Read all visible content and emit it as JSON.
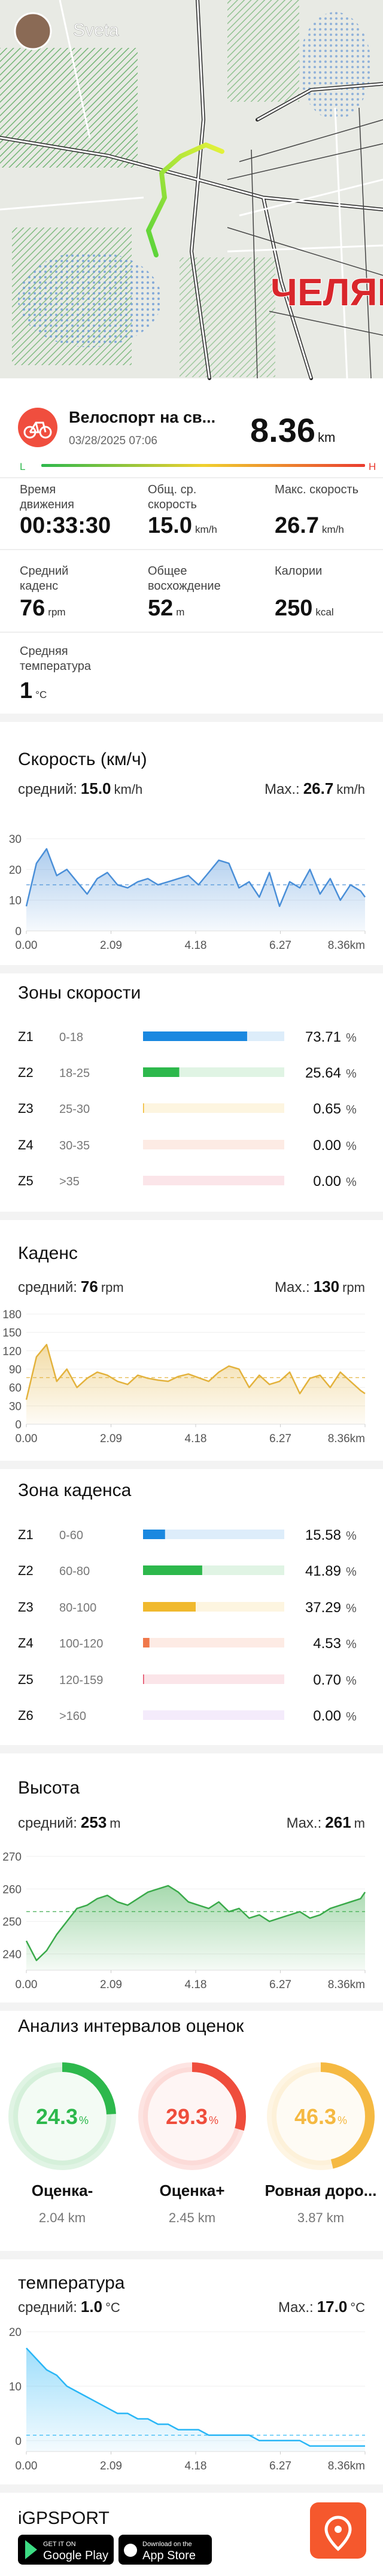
{
  "map": {
    "user": "Sveta",
    "city_label": "ЧЕЛЯБ"
  },
  "activity": {
    "title": "Велоспорт на св...",
    "date": "03/28/2025 07:06",
    "distance": "8.36",
    "distance_unit": "km",
    "low": "L",
    "high": "H"
  },
  "stats": [
    {
      "label": [
        "Время",
        "движения"
      ],
      "value": "00:33:30"
    },
    {
      "label": [
        "Общ. ср.",
        "скорость"
      ],
      "value": "15.0",
      "unit": "km/h"
    },
    {
      "label": [
        "Макс. скорость"
      ],
      "value": "26.7",
      "unit": "km/h"
    },
    {
      "label": [
        "Средний",
        "каденс"
      ],
      "value": "76",
      "unit": "rpm"
    },
    {
      "label": [
        "Общее",
        "восхождение"
      ],
      "value": "52",
      "unit": "m"
    },
    {
      "label": [
        "Калории"
      ],
      "value": "250",
      "unit": "kcal"
    },
    {
      "label": [
        "Средняя",
        "температура"
      ],
      "value": "1",
      "unit": "°C"
    }
  ],
  "chart_data": [
    {
      "type": "area",
      "title": "Скорость (км/ч)",
      "avg_label": "средний:",
      "avg": {
        "value": 15,
        "label": "15.0"
      },
      "max_label": "Max.:",
      "max": {
        "value": 26.7,
        "label": "26.7"
      },
      "unit": "km/h",
      "color": "#4a8fd8",
      "grid": true,
      "x": [
        0,
        0.25,
        0.5,
        0.75,
        1,
        1.25,
        1.5,
        1.75,
        2,
        2.25,
        2.5,
        2.75,
        3,
        3.25,
        3.5,
        3.75,
        4,
        4.25,
        4.5,
        4.75,
        5,
        5.25,
        5.5,
        5.75,
        6,
        6.25,
        6.5,
        6.75,
        7,
        7.25,
        7.5,
        7.75,
        8,
        8.25,
        8.36
      ],
      "values": [
        8,
        22,
        26.7,
        18,
        20,
        16,
        12,
        17,
        19,
        15,
        14,
        16,
        17,
        15,
        16,
        17,
        18,
        15,
        19,
        23,
        22,
        14,
        16,
        11,
        19,
        8,
        16,
        14,
        20,
        12,
        17,
        10,
        15,
        13,
        11
      ],
      "xlim": [
        0,
        8.36
      ],
      "xticks": [
        {
          "value": 0,
          "label": "0.00"
        },
        2.09,
        4.18,
        6.27,
        {
          "value": 8.36,
          "label": "8.36km"
        }
      ],
      "ylim": [
        0,
        30
      ],
      "yticks": [
        0,
        10,
        20,
        30
      ]
    },
    {
      "type": "area",
      "title": "Каденс",
      "avg_label": "средний:",
      "avg": {
        "value": 76,
        "label": "76"
      },
      "max_label": "Max.:",
      "max": {
        "value": 130,
        "label": "130"
      },
      "unit": "rpm",
      "color": "#e3b23c",
      "grid": true,
      "x": [
        0,
        0.25,
        0.5,
        0.75,
        1,
        1.25,
        1.5,
        1.75,
        2,
        2.25,
        2.5,
        2.75,
        3,
        3.25,
        3.5,
        3.75,
        4,
        4.25,
        4.5,
        4.75,
        5,
        5.25,
        5.5,
        5.75,
        6,
        6.25,
        6.5,
        6.75,
        7,
        7.25,
        7.5,
        7.75,
        8,
        8.25,
        8.36
      ],
      "values": [
        40,
        110,
        130,
        70,
        90,
        60,
        75,
        85,
        80,
        70,
        65,
        80,
        75,
        72,
        70,
        78,
        82,
        76,
        70,
        85,
        95,
        90,
        60,
        80,
        65,
        70,
        85,
        50,
        75,
        80,
        60,
        85,
        70,
        55,
        50
      ],
      "xlim": [
        0,
        8.36
      ],
      "xticks": [
        {
          "value": 0,
          "label": "0.00"
        },
        2.09,
        4.18,
        6.27,
        {
          "value": 8.36,
          "label": "8.36km"
        }
      ],
      "ylim": [
        0,
        180
      ],
      "yticks": [
        0,
        30,
        60,
        90,
        120,
        150,
        180
      ]
    },
    {
      "type": "area",
      "title": "Высота",
      "avg_label": "средний:",
      "avg": {
        "value": 253,
        "label": "253"
      },
      "max_label": "Max.:",
      "max": {
        "value": 261,
        "label": "261"
      },
      "unit": "m",
      "color": "#3aaa4a",
      "grid": true,
      "x": [
        0,
        0.25,
        0.5,
        0.75,
        1,
        1.25,
        1.5,
        1.75,
        2,
        2.25,
        2.5,
        2.75,
        3,
        3.25,
        3.5,
        3.75,
        4,
        4.25,
        4.5,
        4.75,
        5,
        5.25,
        5.5,
        5.75,
        6,
        6.25,
        6.5,
        6.75,
        7,
        7.25,
        7.5,
        7.75,
        8,
        8.25,
        8.36
      ],
      "values": [
        244,
        238,
        241,
        246,
        250,
        254,
        255,
        257,
        258,
        256,
        255,
        257,
        259,
        260,
        261,
        259,
        256,
        255,
        254,
        256,
        253,
        254,
        251,
        252,
        250,
        251,
        252,
        253,
        251,
        252,
        254,
        255,
        256,
        257,
        259
      ],
      "xlim": [
        0,
        8.36
      ],
      "xticks": [
        {
          "value": 0,
          "label": "0.00"
        },
        2.09,
        4.18,
        6.27,
        {
          "value": 8.36,
          "label": "8.36km"
        }
      ],
      "ylim": [
        235,
        270
      ],
      "yticks": [
        240,
        250,
        260,
        270
      ]
    },
    {
      "type": "area",
      "title": "температура",
      "avg_label": "средний:",
      "avg": {
        "value": 1,
        "label": "1.0"
      },
      "max_label": "Max.:",
      "max": {
        "value": 17,
        "label": "17.0"
      },
      "unit": "°C",
      "color": "#29b6f6",
      "grid": true,
      "x": [
        0,
        0.25,
        0.5,
        0.75,
        1,
        1.25,
        1.5,
        1.75,
        2,
        2.25,
        2.5,
        2.75,
        3,
        3.25,
        3.5,
        3.75,
        4,
        4.25,
        4.5,
        4.75,
        5,
        5.25,
        5.5,
        5.75,
        6,
        6.25,
        6.5,
        6.75,
        7,
        7.25,
        7.5,
        7.75,
        8,
        8.25,
        8.36
      ],
      "values": [
        17,
        15,
        13,
        12,
        10,
        9,
        8,
        7,
        6,
        5,
        5,
        4,
        4,
        3,
        3,
        2,
        2,
        2,
        1,
        1,
        1,
        1,
        1,
        0,
        0,
        0,
        0,
        0,
        -1,
        -1,
        -1,
        -1,
        -1,
        -1,
        -1
      ],
      "xlim": [
        0,
        8.36
      ],
      "xticks": [
        {
          "value": 0,
          "label": "0.00"
        },
        2.09,
        4.18,
        6.27,
        {
          "value": 8.36,
          "label": "8.36km"
        }
      ],
      "ylim": [
        -2,
        20
      ],
      "yticks": [
        0,
        10,
        20
      ]
    }
  ],
  "speed_zones": {
    "title": "Зоны скорости",
    "percent_sign": "%",
    "rows": [
      {
        "zone": "Z1",
        "range": "0-18",
        "value": 73.71,
        "label": "73.71",
        "color": "#1a88e0"
      },
      {
        "zone": "Z2",
        "range": "18-25",
        "value": 25.64,
        "label": "25.64",
        "color": "#2db84c"
      },
      {
        "zone": "Z3",
        "range": "25-30",
        "value": 0.65,
        "label": "0.65",
        "color": "#f0b92e"
      },
      {
        "zone": "Z4",
        "range": "30-35",
        "value": 0,
        "label": "0.00",
        "color": "#f0784a"
      },
      {
        "zone": "Z5",
        "range": ">35",
        "value": 0,
        "label": "0.00",
        "color": "#e4506a"
      }
    ]
  },
  "cadence_zones": {
    "title": "Зона каденса",
    "percent_sign": "%",
    "rows": [
      {
        "zone": "Z1",
        "range": "0-60",
        "value": 15.58,
        "label": "15.58",
        "color": "#1a88e0"
      },
      {
        "zone": "Z2",
        "range": "60-80",
        "value": 41.89,
        "label": "41.89",
        "color": "#2db84c"
      },
      {
        "zone": "Z3",
        "range": "80-100",
        "value": 37.29,
        "label": "37.29",
        "color": "#f0b92e"
      },
      {
        "zone": "Z4",
        "range": "100-120",
        "value": 4.53,
        "label": "4.53",
        "color": "#f0784a"
      },
      {
        "zone": "Z5",
        "range": "120-159",
        "value": 0.7,
        "label": "0.70",
        "color": "#e4506a"
      },
      {
        "zone": "Z6",
        "range": ">160",
        "value": 0,
        "label": "0.00",
        "color": "#b57be6"
      }
    ]
  },
  "intervals": {
    "title": "Анализ интервалов оценок",
    "percent_sign": "%",
    "items": [
      {
        "value": 24.3,
        "name": "Оценка-",
        "distance": "2.04 km",
        "color": "#2db84c"
      },
      {
        "value": 29.3,
        "name": "Оценка+",
        "distance": "2.45 km",
        "color": "#ef4d3c"
      },
      {
        "value": 46.3,
        "name": "Ровная доро...",
        "distance": "3.87 km",
        "color": "#f5b942"
      }
    ]
  },
  "footer": {
    "brand": "iGPSPORT",
    "google": [
      "GET IT ON",
      "Google Play"
    ],
    "apple": [
      "Download on the",
      "App Store"
    ]
  }
}
